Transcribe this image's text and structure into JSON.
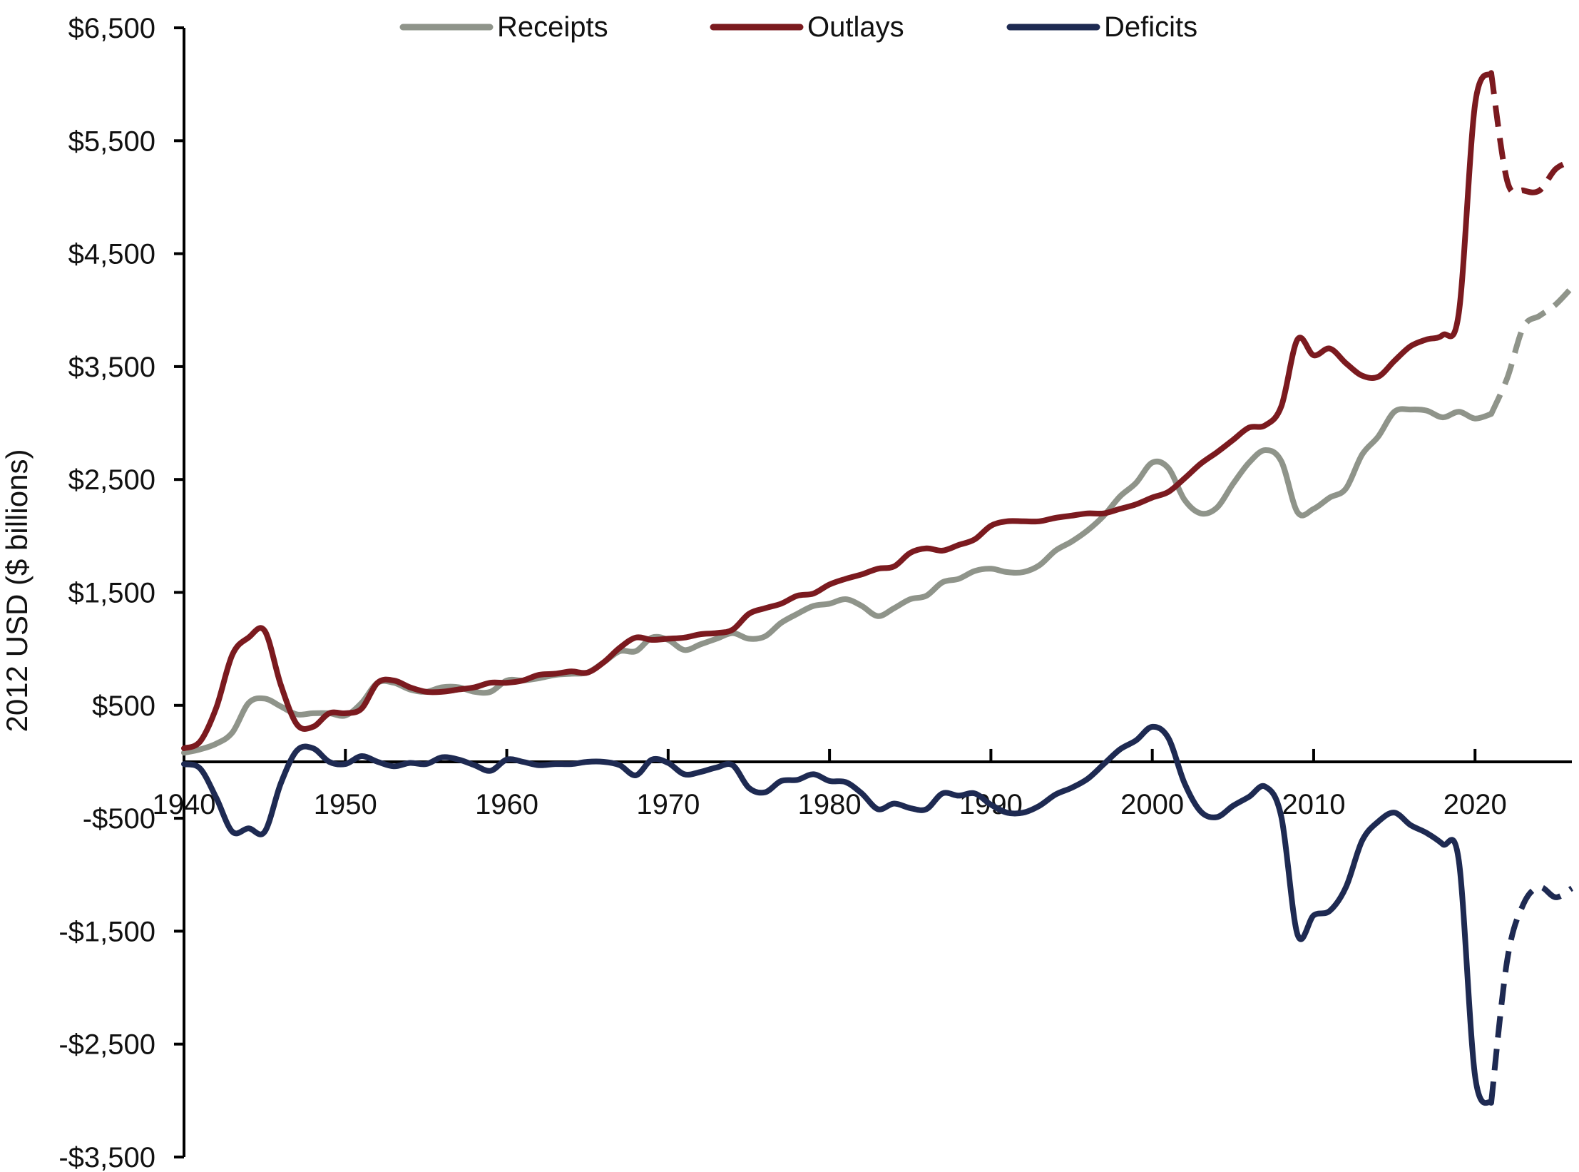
{
  "chart_data": {
    "type": "line",
    "title": "",
    "xlabel": "",
    "ylabel": "2012 USD ($ billions)",
    "xlim": [
      1940,
      2026
    ],
    "ylim": [
      -3500,
      6500
    ],
    "x_ticks": [
      1940,
      1950,
      1960,
      1970,
      1980,
      1990,
      2000,
      2010,
      2020
    ],
    "x_tick_labels": [
      "1940",
      "1950",
      "1960",
      "1970",
      "1980",
      "1990",
      "2000",
      "2010",
      "2020"
    ],
    "y_ticks": [
      6500,
      5500,
      4500,
      3500,
      2500,
      1500,
      500,
      -500,
      -1500,
      -2500,
      -3500
    ],
    "y_tick_labels": [
      "$6,500",
      "$5,500",
      "$4,500",
      "$3,500",
      "$2,500",
      "$1,500",
      "$500",
      "-$500",
      "-$1,500",
      "-$2,500",
      "-$3,500"
    ],
    "grid": false,
    "legend_position": "top",
    "projection_style": "dashed",
    "series": [
      {
        "name": "Receipts",
        "color": "#8f948a",
        "actual": [
          [
            1940,
            80
          ],
          [
            1941,
            110
          ],
          [
            1942,
            160
          ],
          [
            1943,
            260
          ],
          [
            1944,
            520
          ],
          [
            1945,
            560
          ],
          [
            1946,
            490
          ],
          [
            1947,
            420
          ],
          [
            1948,
            430
          ],
          [
            1949,
            430
          ],
          [
            1950,
            410
          ],
          [
            1951,
            520
          ],
          [
            1952,
            700
          ],
          [
            1953,
            700
          ],
          [
            1954,
            640
          ],
          [
            1955,
            620
          ],
          [
            1956,
            660
          ],
          [
            1957,
            660
          ],
          [
            1958,
            620
          ],
          [
            1959,
            620
          ],
          [
            1960,
            720
          ],
          [
            1961,
            720
          ],
          [
            1962,
            740
          ],
          [
            1963,
            770
          ],
          [
            1964,
            780
          ],
          [
            1965,
            790
          ],
          [
            1966,
            880
          ],
          [
            1967,
            980
          ],
          [
            1968,
            980
          ],
          [
            1969,
            1100
          ],
          [
            1970,
            1080
          ],
          [
            1971,
            990
          ],
          [
            1972,
            1040
          ],
          [
            1973,
            1090
          ],
          [
            1974,
            1140
          ],
          [
            1975,
            1090
          ],
          [
            1976,
            1110
          ],
          [
            1977,
            1230
          ],
          [
            1978,
            1310
          ],
          [
            1979,
            1380
          ],
          [
            1980,
            1400
          ],
          [
            1981,
            1440
          ],
          [
            1982,
            1380
          ],
          [
            1983,
            1290
          ],
          [
            1984,
            1360
          ],
          [
            1985,
            1440
          ],
          [
            1986,
            1470
          ],
          [
            1987,
            1590
          ],
          [
            1988,
            1620
          ],
          [
            1989,
            1690
          ],
          [
            1990,
            1710
          ],
          [
            1991,
            1680
          ],
          [
            1992,
            1680
          ],
          [
            1993,
            1740
          ],
          [
            1994,
            1870
          ],
          [
            1995,
            1950
          ],
          [
            1996,
            2050
          ],
          [
            1997,
            2180
          ],
          [
            1998,
            2350
          ],
          [
            1999,
            2470
          ],
          [
            2000,
            2650
          ],
          [
            2001,
            2600
          ],
          [
            2002,
            2320
          ],
          [
            2003,
            2200
          ],
          [
            2004,
            2250
          ],
          [
            2005,
            2460
          ],
          [
            2006,
            2650
          ],
          [
            2007,
            2760
          ],
          [
            2008,
            2660
          ],
          [
            2009,
            2210
          ],
          [
            2010,
            2240
          ],
          [
            2011,
            2340
          ],
          [
            2012,
            2420
          ],
          [
            2013,
            2720
          ],
          [
            2014,
            2880
          ],
          [
            2015,
            3100
          ],
          [
            2016,
            3120
          ],
          [
            2017,
            3110
          ],
          [
            2018,
            3050
          ],
          [
            2019,
            3100
          ],
          [
            2020,
            3040
          ],
          [
            2021,
            3080
          ]
        ],
        "projected": [
          [
            2021,
            3080
          ],
          [
            2022,
            3400
          ],
          [
            2023,
            3850
          ],
          [
            2024,
            3950
          ],
          [
            2025,
            4050
          ],
          [
            2026,
            4200
          ]
        ]
      },
      {
        "name": "Outlays",
        "color": "#7b1a1f",
        "actual": [
          [
            1940,
            120
          ],
          [
            1941,
            180
          ],
          [
            1942,
            480
          ],
          [
            1943,
            950
          ],
          [
            1944,
            1100
          ],
          [
            1945,
            1160
          ],
          [
            1946,
            680
          ],
          [
            1947,
            330
          ],
          [
            1948,
            310
          ],
          [
            1949,
            430
          ],
          [
            1950,
            430
          ],
          [
            1951,
            470
          ],
          [
            1952,
            700
          ],
          [
            1953,
            720
          ],
          [
            1954,
            660
          ],
          [
            1955,
            620
          ],
          [
            1956,
            620
          ],
          [
            1957,
            640
          ],
          [
            1958,
            660
          ],
          [
            1959,
            700
          ],
          [
            1960,
            700
          ],
          [
            1961,
            720
          ],
          [
            1962,
            770
          ],
          [
            1963,
            780
          ],
          [
            1964,
            800
          ],
          [
            1965,
            790
          ],
          [
            1966,
            880
          ],
          [
            1967,
            1010
          ],
          [
            1968,
            1100
          ],
          [
            1969,
            1080
          ],
          [
            1970,
            1090
          ],
          [
            1971,
            1100
          ],
          [
            1972,
            1130
          ],
          [
            1973,
            1140
          ],
          [
            1974,
            1170
          ],
          [
            1975,
            1310
          ],
          [
            1976,
            1360
          ],
          [
            1977,
            1400
          ],
          [
            1978,
            1470
          ],
          [
            1979,
            1490
          ],
          [
            1980,
            1570
          ],
          [
            1981,
            1620
          ],
          [
            1982,
            1660
          ],
          [
            1983,
            1710
          ],
          [
            1984,
            1730
          ],
          [
            1985,
            1850
          ],
          [
            1986,
            1890
          ],
          [
            1987,
            1870
          ],
          [
            1988,
            1920
          ],
          [
            1989,
            1970
          ],
          [
            1990,
            2090
          ],
          [
            1991,
            2130
          ],
          [
            1992,
            2130
          ],
          [
            1993,
            2130
          ],
          [
            1994,
            2160
          ],
          [
            1995,
            2180
          ],
          [
            1996,
            2200
          ],
          [
            1997,
            2200
          ],
          [
            1998,
            2240
          ],
          [
            1999,
            2280
          ],
          [
            2000,
            2340
          ],
          [
            2001,
            2390
          ],
          [
            2002,
            2510
          ],
          [
            2003,
            2640
          ],
          [
            2004,
            2740
          ],
          [
            2005,
            2850
          ],
          [
            2006,
            2960
          ],
          [
            2007,
            2980
          ],
          [
            2008,
            3150
          ],
          [
            2009,
            3740
          ],
          [
            2010,
            3600
          ],
          [
            2011,
            3660
          ],
          [
            2012,
            3530
          ],
          [
            2013,
            3420
          ],
          [
            2014,
            3410
          ],
          [
            2015,
            3550
          ],
          [
            2016,
            3680
          ],
          [
            2017,
            3740
          ],
          [
            2018,
            3780
          ],
          [
            2019,
            3980
          ],
          [
            2020,
            5820
          ],
          [
            2021,
            6100
          ]
        ],
        "projected": [
          [
            2021,
            6100
          ],
          [
            2022,
            5140
          ],
          [
            2023,
            5060
          ],
          [
            2024,
            5060
          ],
          [
            2025,
            5250
          ],
          [
            2026,
            5320
          ]
        ]
      },
      {
        "name": "Deficits",
        "color": "#1e2a52",
        "actual": [
          [
            1940,
            -20
          ],
          [
            1941,
            -60
          ],
          [
            1942,
            -320
          ],
          [
            1943,
            -620
          ],
          [
            1944,
            -590
          ],
          [
            1945,
            -620
          ],
          [
            1946,
            -190
          ],
          [
            1947,
            100
          ],
          [
            1948,
            120
          ],
          [
            1949,
            0
          ],
          [
            1950,
            -20
          ],
          [
            1951,
            50
          ],
          [
            1952,
            0
          ],
          [
            1953,
            -40
          ],
          [
            1954,
            -10
          ],
          [
            1955,
            -20
          ],
          [
            1956,
            40
          ],
          [
            1957,
            20
          ],
          [
            1958,
            -30
          ],
          [
            1959,
            -80
          ],
          [
            1960,
            20
          ],
          [
            1961,
            0
          ],
          [
            1962,
            -30
          ],
          [
            1963,
            -20
          ],
          [
            1964,
            -20
          ],
          [
            1965,
            0
          ],
          [
            1966,
            0
          ],
          [
            1967,
            -30
          ],
          [
            1968,
            -120
          ],
          [
            1969,
            20
          ],
          [
            1970,
            -10
          ],
          [
            1971,
            -110
          ],
          [
            1972,
            -90
          ],
          [
            1973,
            -50
          ],
          [
            1974,
            -30
          ],
          [
            1975,
            -230
          ],
          [
            1976,
            -270
          ],
          [
            1977,
            -170
          ],
          [
            1978,
            -160
          ],
          [
            1979,
            -110
          ],
          [
            1980,
            -170
          ],
          [
            1981,
            -180
          ],
          [
            1982,
            -280
          ],
          [
            1983,
            -420
          ],
          [
            1984,
            -370
          ],
          [
            1985,
            -410
          ],
          [
            1986,
            -420
          ],
          [
            1987,
            -280
          ],
          [
            1988,
            -300
          ],
          [
            1989,
            -280
          ],
          [
            1990,
            -380
          ],
          [
            1991,
            -450
          ],
          [
            1992,
            -450
          ],
          [
            1993,
            -390
          ],
          [
            1994,
            -290
          ],
          [
            1995,
            -230
          ],
          [
            1996,
            -150
          ],
          [
            1997,
            -20
          ],
          [
            1998,
            110
          ],
          [
            1999,
            190
          ],
          [
            2000,
            310
          ],
          [
            2001,
            210
          ],
          [
            2002,
            -190
          ],
          [
            2003,
            -440
          ],
          [
            2004,
            -490
          ],
          [
            2005,
            -390
          ],
          [
            2006,
            -310
          ],
          [
            2007,
            -220
          ],
          [
            2008,
            -490
          ],
          [
            2009,
            -1530
          ],
          [
            2010,
            -1360
          ],
          [
            2011,
            -1320
          ],
          [
            2012,
            -1110
          ],
          [
            2013,
            -700
          ],
          [
            2014,
            -530
          ],
          [
            2015,
            -450
          ],
          [
            2016,
            -560
          ],
          [
            2017,
            -630
          ],
          [
            2018,
            -730
          ],
          [
            2019,
            -880
          ],
          [
            2020,
            -2780
          ],
          [
            2021,
            -3020
          ]
        ],
        "projected": [
          [
            2021,
            -3020
          ],
          [
            2022,
            -1750
          ],
          [
            2023,
            -1260
          ],
          [
            2024,
            -1110
          ],
          [
            2025,
            -1200
          ],
          [
            2026,
            -1120
          ]
        ]
      }
    ]
  }
}
